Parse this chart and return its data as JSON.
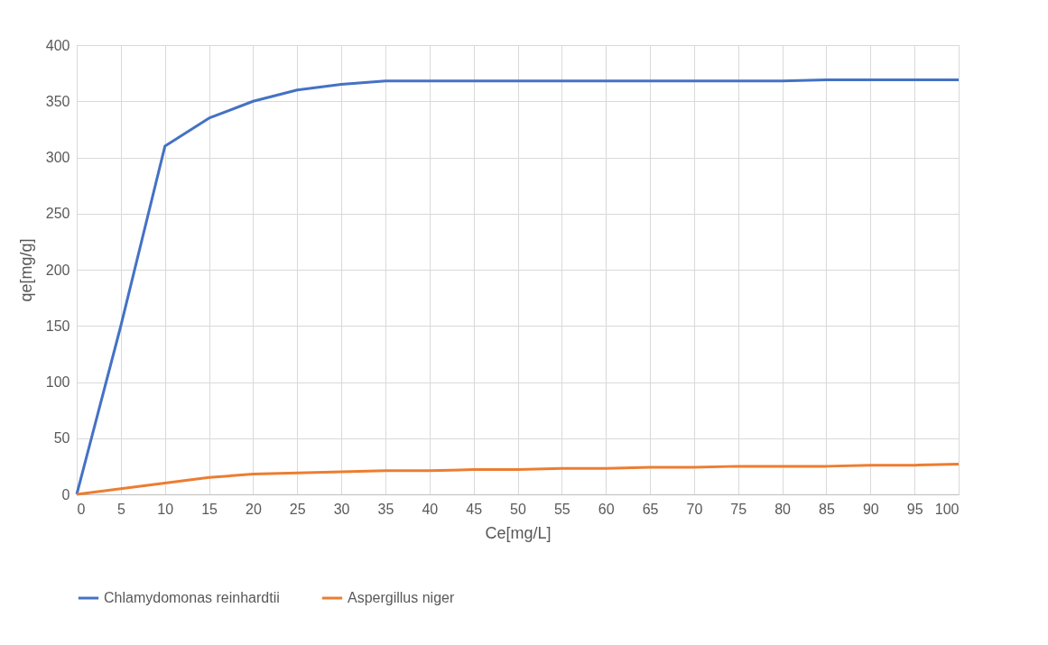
{
  "chart_data": {
    "type": "line",
    "xlabel": "Ce[mg/L]",
    "ylabel": "qe[mg/g]",
    "x": [
      0,
      5,
      10,
      15,
      20,
      25,
      30,
      35,
      40,
      45,
      50,
      55,
      60,
      65,
      70,
      75,
      80,
      85,
      90,
      95,
      100
    ],
    "series": [
      {
        "name": "Chlamydomonas reinhardtii",
        "color": "#4472c4",
        "values": [
          0,
          150,
          310,
          335,
          350,
          360,
          365,
          368,
          368,
          368,
          368,
          368,
          368,
          368,
          368,
          368,
          368,
          369,
          369,
          369,
          369
        ]
      },
      {
        "name": "Aspergillus niger",
        "color": "#ed7d31",
        "values": [
          0,
          5,
          10,
          15,
          18,
          19,
          20,
          21,
          21,
          22,
          22,
          23,
          23,
          24,
          24,
          25,
          25,
          25,
          26,
          26,
          27
        ]
      }
    ],
    "xlim": [
      0,
      100
    ],
    "xticks": [
      0,
      5,
      10,
      15,
      20,
      25,
      30,
      35,
      40,
      45,
      50,
      55,
      60,
      65,
      70,
      75,
      80,
      85,
      90,
      95,
      100
    ],
    "ylim": [
      0,
      400
    ],
    "yticks": [
      0,
      50,
      100,
      150,
      200,
      250,
      300,
      350,
      400
    ],
    "grid": true,
    "legend": "bottom",
    "marker": "none",
    "line_style": "solid"
  }
}
